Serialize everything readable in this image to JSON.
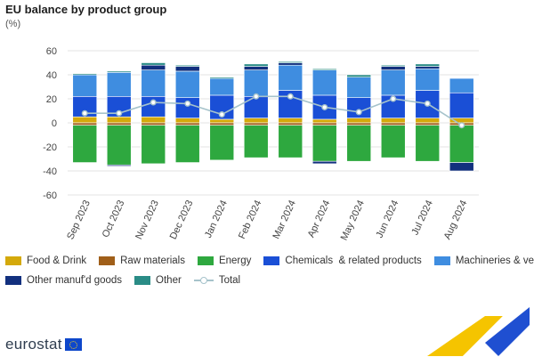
{
  "title": "EU balance by product group",
  "unit": "(%)",
  "brand": "eurostat",
  "colors": {
    "food": "#d4a90b",
    "raw": "#a05f19",
    "energy": "#2ea83f",
    "chemicals": "#1a4fd6",
    "machineries": "#3f8de0",
    "other_manuf": "#12307e",
    "other": "#2a8c86",
    "total": "#a6c3cb"
  },
  "chart_data": {
    "type": "bar",
    "stacked": true,
    "title": "EU balance by product group",
    "ylabel": "(%)",
    "ylim": [
      -60,
      60
    ],
    "yticks": [
      -60,
      -40,
      -20,
      0,
      20,
      40,
      60
    ],
    "grid": true,
    "legend_position": "bottom",
    "categories": [
      "Sep 2023",
      "Oct 2023",
      "Nov 2023",
      "Dec 2023",
      "Jan 2024",
      "Feb 2024",
      "Mar 2024",
      "Apr 2024",
      "May 2024",
      "Jun 2024",
      "Jul 2024",
      "Aug 2024"
    ],
    "series": [
      {
        "name": "Food & Drink",
        "color_key": "food",
        "values": [
          5,
          5,
          5,
          4,
          3,
          4,
          4,
          3,
          4,
          4,
          4,
          4
        ]
      },
      {
        "name": "Raw materials",
        "color_key": "raw",
        "values": [
          -2,
          -2,
          -2,
          -2,
          -2,
          -2,
          -2,
          -2,
          -2,
          -2,
          -2,
          -2
        ]
      },
      {
        "name": "Energy",
        "color_key": "energy",
        "values": [
          -31,
          -33,
          -32,
          -31,
          -29,
          -27,
          -27,
          -30,
          -30,
          -27,
          -30,
          -31
        ]
      },
      {
        "name": "Chemicals  & related products",
        "color_key": "chemicals",
        "values": [
          17,
          17,
          17,
          17,
          20,
          18,
          23,
          20,
          17,
          19,
          23,
          21
        ]
      },
      {
        "name": "Machineries & vehicles",
        "color_key": "machineries",
        "values": [
          18,
          20,
          22,
          22,
          14,
          22,
          21,
          21,
          17,
          21,
          18,
          12
        ]
      },
      {
        "name": "Other manuf'd goods",
        "color_key": "other_manuf",
        "values": [
          0,
          -1,
          4,
          4,
          0,
          3,
          2,
          -2,
          0,
          3,
          2,
          -7
        ]
      },
      {
        "name": "Other",
        "color_key": "other",
        "values": [
          1,
          1,
          2,
          1,
          1,
          2,
          1,
          1,
          2,
          1,
          2,
          0
        ]
      },
      {
        "name": "Total",
        "color_key": "total",
        "type": "line",
        "values": [
          8,
          8,
          17,
          16,
          7,
          22,
          22,
          13,
          9,
          20,
          16,
          -2
        ]
      }
    ]
  }
}
